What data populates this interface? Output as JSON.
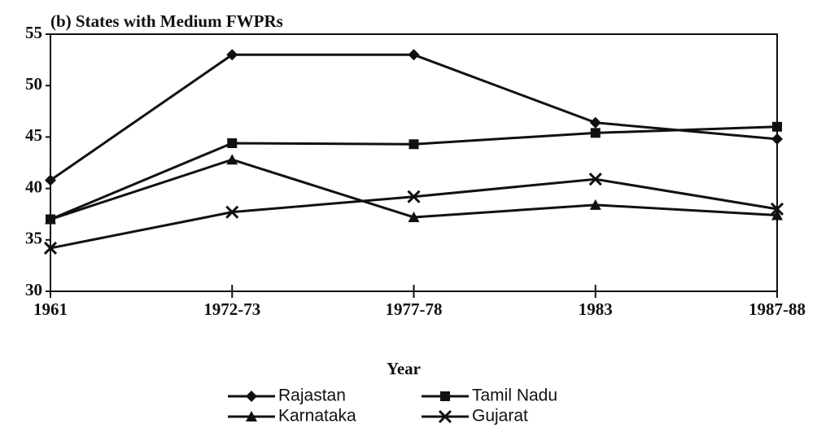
{
  "chart_data": {
    "type": "line",
    "title": "(b) States with Medium FWPRs",
    "x_label": "Year",
    "categories": [
      "1961",
      "1972-73",
      "1977-78",
      "1983",
      "1987-88"
    ],
    "series": [
      {
        "name": "Rajastan",
        "color": "#111111",
        "marker": "diamond",
        "values": [
          40.8,
          53,
          53,
          46.4,
          44.8
        ]
      },
      {
        "name": "Tamil Nadu",
        "color": "#111111",
        "marker": "square",
        "values": [
          37,
          44.4,
          44.3,
          45.4,
          46
        ]
      },
      {
        "name": "Karnataka",
        "color": "#111111",
        "marker": "triangle",
        "values": [
          37,
          42.8,
          37.2,
          38.4,
          37.4
        ]
      },
      {
        "name": "Gujarat",
        "color": "#111111",
        "marker": "x",
        "values": [
          34.2,
          37.7,
          39.2,
          40.9,
          38
        ]
      }
    ],
    "ylim": [
      30,
      55
    ],
    "yticks": [
      30,
      35,
      40,
      45,
      50,
      55
    ],
    "grid": false
  }
}
